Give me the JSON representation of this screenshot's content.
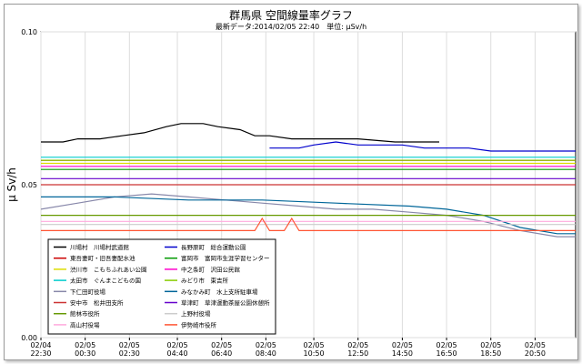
{
  "chart_data": {
    "type": "line",
    "title": "群馬県 空間線量率グラフ",
    "subtitle": "最新データ:2014/02/05 22:40　単位: μSv/h",
    "ylabel": "μ Sv/h",
    "xlabel": "",
    "ylim": [
      0.0,
      0.1
    ],
    "y_ticks": [
      "0.10",
      "0.05",
      "0.00"
    ],
    "y_tick_values": [
      0.1,
      0.05,
      0.0
    ],
    "x_range": [
      0,
      145
    ],
    "x_ticks": [
      {
        "top": "02/04",
        "bottom": "22:30",
        "x": 0
      },
      {
        "top": "02/05",
        "bottom": "00:30",
        "x": 12
      },
      {
        "top": "02/05",
        "bottom": "02:30",
        "x": 24
      },
      {
        "top": "02/05",
        "bottom": "04:40",
        "x": 37
      },
      {
        "top": "02/05",
        "bottom": "06:40",
        "x": 49
      },
      {
        "top": "02/05",
        "bottom": "08:40",
        "x": 61
      },
      {
        "top": "02/05",
        "bottom": "10:50",
        "x": 74
      },
      {
        "top": "02/05",
        "bottom": "12:50",
        "x": 86
      },
      {
        "top": "02/05",
        "bottom": "14:50",
        "x": 98
      },
      {
        "top": "02/05",
        "bottom": "16:50",
        "x": 110
      },
      {
        "top": "02/05",
        "bottom": "18:50",
        "x": 122
      },
      {
        "top": "02/05",
        "bottom": "20:50",
        "x": 134
      }
    ],
    "grid": true,
    "legend_position": "bottom-left",
    "series": [
      {
        "name": "川場村　川場村武道館",
        "color": "#000000",
        "points": [
          [
            0,
            0.064
          ],
          [
            6,
            0.064
          ],
          [
            10,
            0.065
          ],
          [
            16,
            0.065
          ],
          [
            22,
            0.066
          ],
          [
            28,
            0.067
          ],
          [
            34,
            0.069
          ],
          [
            38,
            0.07
          ],
          [
            44,
            0.07
          ],
          [
            48,
            0.069
          ],
          [
            54,
            0.068
          ],
          [
            58,
            0.066
          ],
          [
            62,
            0.066
          ],
          [
            68,
            0.065
          ],
          [
            76,
            0.065
          ],
          [
            86,
            0.065
          ],
          [
            96,
            0.064
          ],
          [
            104,
            0.064
          ],
          [
            108,
            0.064
          ]
        ]
      },
      {
        "name": "長野原町　総合運動公園",
        "color": "#0000cc",
        "points": [
          [
            62,
            0.062
          ],
          [
            70,
            0.062
          ],
          [
            74,
            0.063
          ],
          [
            80,
            0.064
          ],
          [
            86,
            0.063
          ],
          [
            92,
            0.063
          ],
          [
            98,
            0.063
          ],
          [
            104,
            0.062
          ],
          [
            110,
            0.062
          ],
          [
            116,
            0.062
          ],
          [
            122,
            0.061
          ],
          [
            130,
            0.061
          ],
          [
            138,
            0.061
          ],
          [
            145,
            0.061
          ]
        ]
      },
      {
        "name": "東吾妻町・旧吾妻配水池",
        "color": "#cc0000",
        "points": [
          [
            0,
            0.058
          ],
          [
            20,
            0.058
          ],
          [
            40,
            0.058
          ],
          [
            60,
            0.058
          ],
          [
            80,
            0.058
          ],
          [
            100,
            0.058
          ],
          [
            120,
            0.058
          ],
          [
            145,
            0.058
          ]
        ]
      },
      {
        "name": "富岡市　富岡市生涯学習センター",
        "color": "#009900",
        "points": [
          [
            0,
            0.055
          ],
          [
            20,
            0.055
          ],
          [
            40,
            0.055
          ],
          [
            60,
            0.055
          ],
          [
            80,
            0.055
          ],
          [
            100,
            0.055
          ],
          [
            120,
            0.055
          ],
          [
            145,
            0.055
          ]
        ]
      },
      {
        "name": "渋川市　こもちふれあい公園",
        "color": "#dddd00",
        "points": [
          [
            0,
            0.057
          ],
          [
            20,
            0.057
          ],
          [
            40,
            0.057
          ],
          [
            60,
            0.057
          ],
          [
            80,
            0.057
          ],
          [
            100,
            0.057
          ],
          [
            120,
            0.057
          ],
          [
            145,
            0.057
          ]
        ]
      },
      {
        "name": "中之条町　沢田公民館",
        "color": "#ff00cc",
        "points": [
          [
            0,
            0.056
          ],
          [
            20,
            0.056
          ],
          [
            40,
            0.056
          ],
          [
            60,
            0.056
          ],
          [
            80,
            0.056
          ],
          [
            100,
            0.056
          ],
          [
            120,
            0.056
          ],
          [
            145,
            0.056
          ]
        ]
      },
      {
        "name": "太田市　ぐんまこどもの国",
        "color": "#00cccc",
        "points": [
          [
            0,
            0.059
          ],
          [
            20,
            0.059
          ],
          [
            40,
            0.059
          ],
          [
            60,
            0.059
          ],
          [
            80,
            0.059
          ],
          [
            100,
            0.059
          ],
          [
            120,
            0.059
          ],
          [
            145,
            0.059
          ]
        ]
      },
      {
        "name": "みどり市　東吉所",
        "color": "#88cc00",
        "points": [
          [
            0,
            0.058
          ],
          [
            20,
            0.058
          ],
          [
            40,
            0.058
          ],
          [
            60,
            0.058
          ],
          [
            80,
            0.058
          ],
          [
            100,
            0.058
          ],
          [
            120,
            0.058
          ],
          [
            145,
            0.058
          ]
        ]
      },
      {
        "name": "下仁田町役場",
        "color": "#8888aa",
        "points": [
          [
            0,
            0.042
          ],
          [
            10,
            0.044
          ],
          [
            20,
            0.046
          ],
          [
            30,
            0.047
          ],
          [
            40,
            0.046
          ],
          [
            50,
            0.045
          ],
          [
            60,
            0.044
          ],
          [
            70,
            0.043
          ],
          [
            80,
            0.042
          ],
          [
            90,
            0.042
          ],
          [
            100,
            0.041
          ],
          [
            110,
            0.04
          ],
          [
            120,
            0.038
          ],
          [
            130,
            0.035
          ],
          [
            140,
            0.033
          ],
          [
            145,
            0.033
          ]
        ]
      },
      {
        "name": "みなかみ町　水上支所駐車場",
        "color": "#006699",
        "points": [
          [
            0,
            0.046
          ],
          [
            20,
            0.046
          ],
          [
            40,
            0.045
          ],
          [
            60,
            0.045
          ],
          [
            80,
            0.044
          ],
          [
            100,
            0.043
          ],
          [
            110,
            0.042
          ],
          [
            120,
            0.04
          ],
          [
            130,
            0.036
          ],
          [
            140,
            0.034
          ],
          [
            145,
            0.034
          ]
        ]
      },
      {
        "name": "安中市　松井田支所",
        "color": "#cc3333",
        "points": [
          [
            0,
            0.05
          ],
          [
            20,
            0.05
          ],
          [
            40,
            0.05
          ],
          [
            60,
            0.05
          ],
          [
            80,
            0.05
          ],
          [
            100,
            0.05
          ],
          [
            120,
            0.05
          ],
          [
            145,
            0.05
          ]
        ]
      },
      {
        "name": "草津町　草津運動茶屋公園休憩所",
        "color": "#6600cc",
        "points": [
          [
            0,
            0.052
          ],
          [
            20,
            0.052
          ],
          [
            40,
            0.052
          ],
          [
            60,
            0.052
          ],
          [
            80,
            0.052
          ],
          [
            100,
            0.052
          ],
          [
            120,
            0.052
          ],
          [
            145,
            0.052
          ]
        ]
      },
      {
        "name": "館林市役所",
        "color": "#669900",
        "points": [
          [
            0,
            0.04
          ],
          [
            20,
            0.04
          ],
          [
            40,
            0.04
          ],
          [
            60,
            0.04
          ],
          [
            80,
            0.04
          ],
          [
            100,
            0.04
          ],
          [
            120,
            0.04
          ],
          [
            145,
            0.04
          ]
        ]
      },
      {
        "name": "上野村役場",
        "color": "#cccccc",
        "points": [
          [
            0,
            0.037
          ],
          [
            20,
            0.037
          ],
          [
            40,
            0.037
          ],
          [
            60,
            0.037
          ],
          [
            80,
            0.037
          ],
          [
            100,
            0.037
          ],
          [
            120,
            0.037
          ],
          [
            145,
            0.037
          ]
        ]
      },
      {
        "name": "高山村役場",
        "color": "#ffaadd",
        "points": [
          [
            0,
            0.038
          ],
          [
            20,
            0.038
          ],
          [
            40,
            0.038
          ],
          [
            60,
            0.038
          ],
          [
            80,
            0.038
          ],
          [
            100,
            0.038
          ],
          [
            120,
            0.038
          ],
          [
            145,
            0.038
          ]
        ]
      },
      {
        "name": "伊勢崎市役所",
        "color": "#ff5533",
        "points": [
          [
            0,
            0.035
          ],
          [
            20,
            0.035
          ],
          [
            40,
            0.035
          ],
          [
            58,
            0.035
          ],
          [
            60,
            0.039
          ],
          [
            62,
            0.035
          ],
          [
            66,
            0.035
          ],
          [
            68,
            0.039
          ],
          [
            70,
            0.035
          ],
          [
            80,
            0.035
          ],
          [
            100,
            0.035
          ],
          [
            120,
            0.035
          ],
          [
            145,
            0.035
          ]
        ]
      }
    ]
  }
}
